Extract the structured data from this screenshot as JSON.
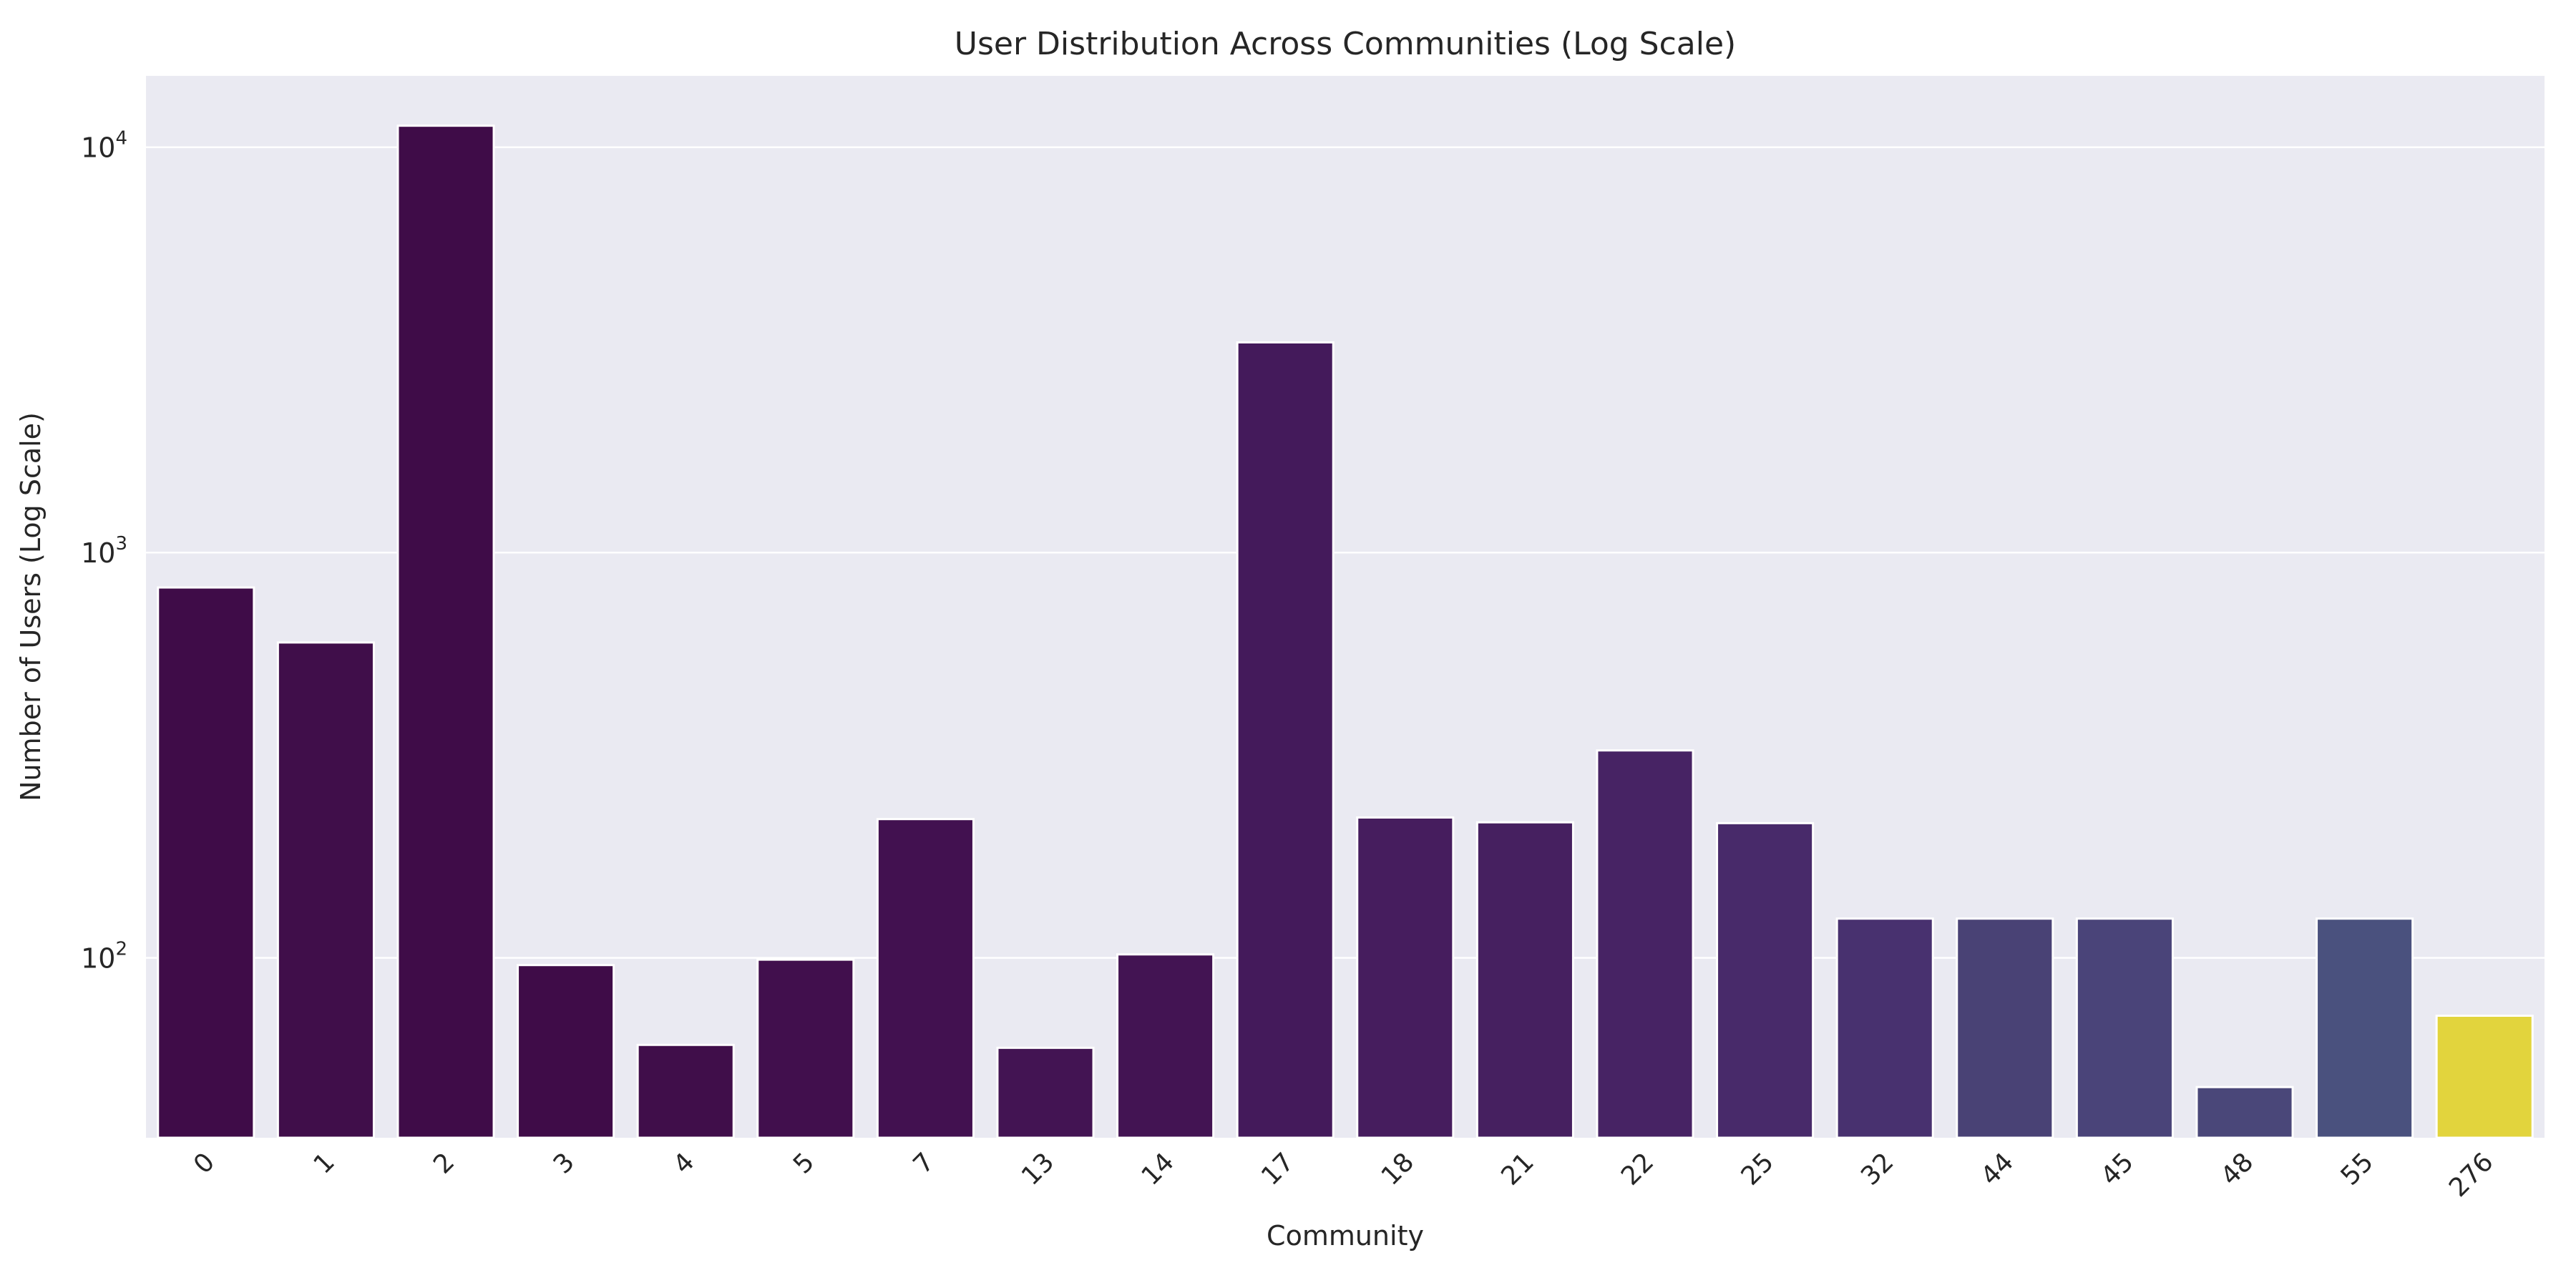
{
  "chart_data": {
    "type": "bar",
    "title": "User Distribution Across Communities (Log Scale)",
    "xlabel": "Community",
    "ylabel": "Number of Users (Log Scale)",
    "yscale": "log",
    "ylim": [
      36,
      15000
    ],
    "grid": true,
    "legend": "none",
    "yticks": [
      {
        "value": 100,
        "base": "10",
        "exp": "2"
      },
      {
        "value": 1000,
        "base": "10",
        "exp": "3"
      },
      {
        "value": 10000,
        "base": "10",
        "exp": "4"
      }
    ],
    "categories": [
      "0",
      "1",
      "2",
      "3",
      "4",
      "5",
      "7",
      "13",
      "14",
      "17",
      "18",
      "21",
      "22",
      "25",
      "32",
      "44",
      "45",
      "48",
      "55",
      "276"
    ],
    "values": [
      820,
      600,
      11300,
      96,
      61,
      99,
      220,
      60,
      102,
      3300,
      222,
      216,
      325,
      215,
      125,
      125,
      125,
      48,
      125,
      72
    ],
    "colors": [
      "#3f0c48",
      "#400e4a",
      "#3f0c48",
      "#3f0c48",
      "#400e4a",
      "#410f4d",
      "#421150",
      "#431453",
      "#431453",
      "#441a5b",
      "#461d5e",
      "#462060",
      "#472364",
      "#482a6a",
      "#48316f",
      "#494275",
      "#4a4479",
      "#4a4779",
      "#4a517e",
      "#e2d43d"
    ],
    "colors_meaning": "viridis palette by community"
  }
}
